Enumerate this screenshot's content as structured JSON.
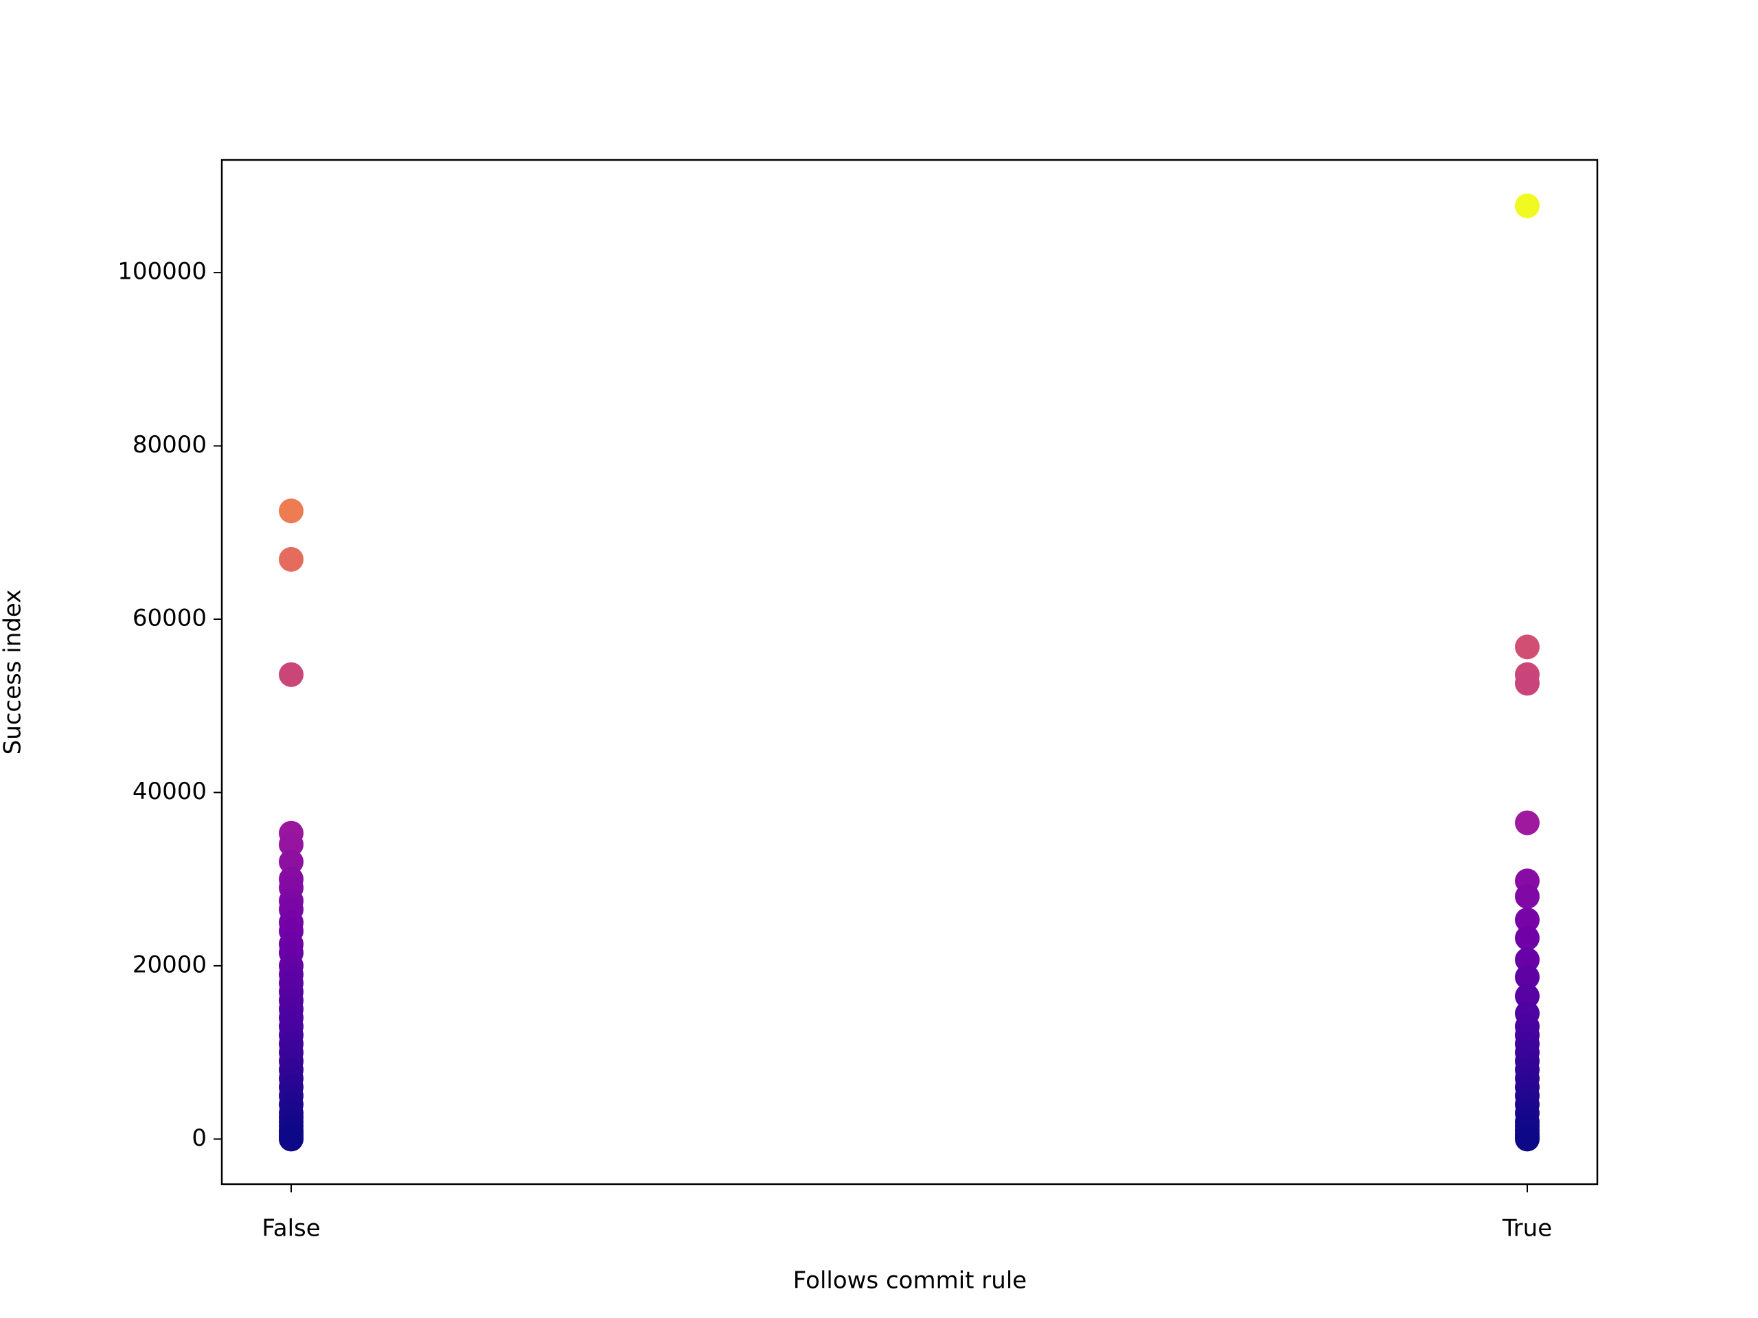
{
  "chart_data": {
    "type": "scatter",
    "xlabel": "Follows commit rule",
    "ylabel": "Success index",
    "categories": [
      "False",
      "True"
    ],
    "values": [
      [
        72500,
        66900,
        53600,
        35300,
        34000,
        32000,
        30000,
        29000,
        27500,
        26500,
        25000,
        24000,
        22500,
        21500,
        20000,
        19000,
        18000,
        17000,
        16000,
        15000,
        14000,
        13000,
        12000,
        11000,
        10000,
        9000,
        8000,
        7000,
        6000,
        5000,
        4000,
        3000,
        2500,
        2000,
        1500,
        1000,
        700,
        400,
        200,
        100,
        0
      ],
      [
        107700,
        56800,
        53600,
        52600,
        36500,
        29800,
        28000,
        25300,
        23200,
        20700,
        18700,
        16500,
        14500,
        13000,
        12000,
        11000,
        10000,
        9000,
        8000,
        7000,
        6000,
        5000,
        4000,
        3000,
        2000,
        1500,
        1000,
        500,
        200,
        0
      ]
    ],
    "ylim": [
      -5200,
      113000
    ],
    "yticks": [
      0,
      20000,
      40000,
      60000,
      80000,
      100000
    ],
    "colormap": "plasma",
    "grid": false
  }
}
